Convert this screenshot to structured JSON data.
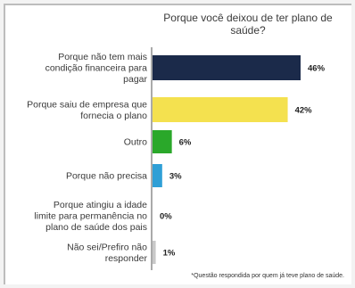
{
  "chart_data": {
    "type": "bar",
    "orientation": "horizontal",
    "title_lines": [
      "Porque você deixou de ter plano de",
      "saúde?"
    ],
    "categories": [
      [
        "Porque não tem mais",
        "condição financeira para",
        "pagar"
      ],
      [
        "Porque saiu de empresa que",
        "fornecia o plano"
      ],
      [
        "Outro"
      ],
      [
        "Porque não precisa"
      ],
      [
        "Porque atingiu a idade",
        "limite para permanência no",
        "plano de saúde dos pais"
      ],
      [
        "Não sei/Prefiro não",
        "responder"
      ]
    ],
    "values": [
      46,
      42,
      6,
      3,
      0,
      1
    ],
    "value_labels": [
      "46%",
      "42%",
      "6%",
      "3%",
      "0%",
      "1%"
    ],
    "colors": [
      "#1b2a4a",
      "#f4e14f",
      "#2aa82a",
      "#2f9fd6",
      "#ffffff",
      "#c8c8c8"
    ],
    "xlim": [
      0,
      46
    ],
    "grid": false,
    "legend": "none"
  },
  "footnote": "*Questão respondida por quem já teve plano de saúde."
}
